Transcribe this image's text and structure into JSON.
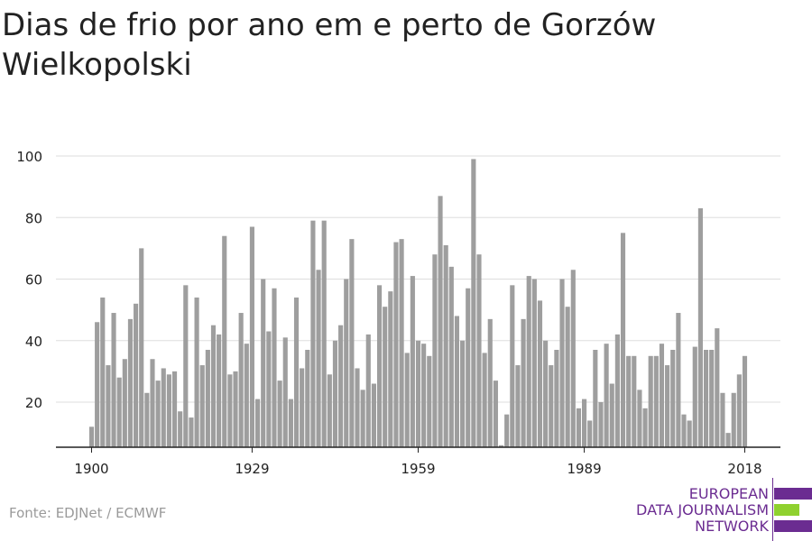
{
  "header": {
    "title": "Dias de frio por ano em e perto de Gorzów Wielkopolski"
  },
  "footer": {
    "source": "Fonte: EDJNet / ECMWF"
  },
  "logo": {
    "lines": [
      "EUROPEAN",
      "DATA JOURNALISM",
      "NETWORK"
    ],
    "bar_colors": [
      "#6b2c91",
      "#8fd12f",
      "#6b2c91"
    ]
  },
  "colors": {
    "bar": "#9e9e9e",
    "grid": "#dddddd",
    "axis": "#222222",
    "text": "#222222"
  },
  "chart_data": {
    "type": "bar",
    "title": "Dias de frio por ano em e perto de Gorzów Wielkopolski",
    "xlabel": "",
    "ylabel": "",
    "grid": true,
    "x_ticks": [
      1900,
      1929,
      1959,
      1989,
      2018
    ],
    "y_ticks": [
      20,
      40,
      60,
      80,
      100
    ],
    "ylim": [
      5,
      100
    ],
    "categories": [
      1900,
      1901,
      1902,
      1903,
      1904,
      1905,
      1906,
      1907,
      1908,
      1909,
      1910,
      1911,
      1912,
      1913,
      1914,
      1915,
      1916,
      1917,
      1918,
      1919,
      1920,
      1921,
      1922,
      1923,
      1924,
      1925,
      1926,
      1927,
      1928,
      1929,
      1930,
      1931,
      1932,
      1933,
      1934,
      1935,
      1936,
      1937,
      1938,
      1939,
      1940,
      1941,
      1942,
      1943,
      1944,
      1945,
      1946,
      1947,
      1948,
      1949,
      1950,
      1951,
      1952,
      1953,
      1954,
      1955,
      1956,
      1957,
      1958,
      1959,
      1960,
      1961,
      1962,
      1963,
      1964,
      1965,
      1966,
      1967,
      1968,
      1969,
      1970,
      1971,
      1972,
      1973,
      1974,
      1975,
      1976,
      1977,
      1978,
      1979,
      1980,
      1981,
      1982,
      1983,
      1984,
      1985,
      1986,
      1987,
      1988,
      1989,
      1990,
      1991,
      1992,
      1993,
      1994,
      1995,
      1996,
      1997,
      1998,
      1999,
      2000,
      2001,
      2002,
      2003,
      2004,
      2005,
      2006,
      2007,
      2008,
      2009,
      2010,
      2011,
      2012,
      2013,
      2014,
      2015,
      2016,
      2017,
      2018
    ],
    "values": [
      12,
      46,
      54,
      32,
      49,
      28,
      34,
      47,
      52,
      70,
      23,
      34,
      27,
      31,
      29,
      30,
      17,
      58,
      15,
      54,
      32,
      37,
      45,
      42,
      74,
      29,
      30,
      49,
      39,
      77,
      21,
      60,
      43,
      57,
      27,
      41,
      21,
      54,
      31,
      37,
      79,
      63,
      79,
      29,
      40,
      45,
      60,
      73,
      31,
      24,
      42,
      26,
      58,
      51,
      56,
      72,
      73,
      36,
      61,
      40,
      39,
      35,
      68,
      87,
      71,
      64,
      48,
      40,
      57,
      99,
      68,
      36,
      47,
      27,
      6,
      16,
      58,
      32,
      47,
      61,
      60,
      53,
      40,
      32,
      37,
      60,
      51,
      63,
      18,
      21,
      14,
      37,
      20,
      39,
      26,
      42,
      75,
      35,
      35,
      24,
      18,
      35,
      35,
      39,
      32,
      37,
      49,
      16,
      14,
      38,
      83,
      37,
      37,
      44,
      23,
      10,
      23,
      29,
      35
    ]
  }
}
